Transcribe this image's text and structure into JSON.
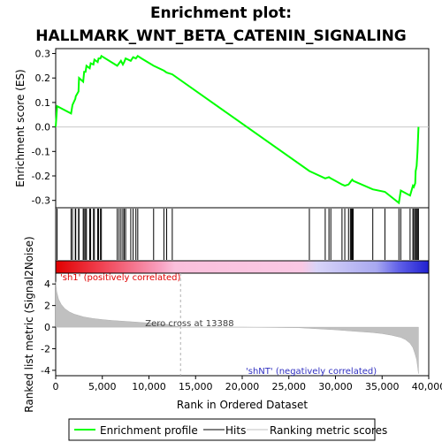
{
  "chart_data": {
    "type": "line",
    "title_line1": "Enrichment plot:",
    "title_line2": "HALLMARK_WNT_BETA_CATENIN_SIGNALING",
    "top_panel": {
      "ylabel": "Enrichment score (ES)",
      "ylim": [
        -0.33,
        0.32
      ],
      "yticks": [
        0.3,
        0.2,
        0.1,
        0.0,
        -0.1,
        -0.2,
        -0.3
      ],
      "ytick_labels": [
        "0.3",
        "0.2",
        "0.1",
        "0.0",
        "-0.1",
        "-0.2",
        "-0.3"
      ],
      "series": [
        {
          "name": "Enrichment profile",
          "color": "#00ff00",
          "x": [
            0,
            150,
            1650,
            1800,
            2100,
            2150,
            2450,
            2500,
            2950,
            3050,
            3200,
            3300,
            3650,
            3750,
            4050,
            4150,
            4500,
            4600,
            4800,
            4900,
            6600,
            6800,
            7000,
            7200,
            7350,
            7500,
            8050,
            8300,
            8600,
            8800,
            9200,
            10500,
            11600,
            11900,
            12500,
            27200,
            28900,
            29300,
            29500,
            30700,
            31000,
            31400,
            31600,
            31700,
            31800,
            31900,
            34000,
            35300,
            36800,
            37000,
            38000,
            38300,
            38400,
            38550,
            38600,
            38700,
            38800,
            38900
          ],
          "y": [
            0.0,
            0.085,
            0.055,
            0.09,
            0.115,
            0.125,
            0.145,
            0.2,
            0.185,
            0.225,
            0.225,
            0.25,
            0.24,
            0.26,
            0.255,
            0.275,
            0.265,
            0.28,
            0.28,
            0.29,
            0.25,
            0.26,
            0.27,
            0.255,
            0.265,
            0.28,
            0.27,
            0.285,
            0.28,
            0.29,
            0.28,
            0.25,
            0.23,
            0.222,
            0.215,
            -0.18,
            -0.21,
            -0.205,
            -0.21,
            -0.235,
            -0.24,
            -0.235,
            -0.225,
            -0.22,
            -0.215,
            -0.22,
            -0.255,
            -0.265,
            -0.31,
            -0.26,
            -0.28,
            -0.24,
            -0.245,
            -0.23,
            -0.18,
            -0.16,
            -0.1,
            0.0
          ]
        }
      ]
    },
    "hits_panel": {
      "series_name": "Hits",
      "x": [
        150,
        1650,
        1800,
        2100,
        2150,
        2450,
        2500,
        2950,
        3050,
        3200,
        3300,
        3650,
        3750,
        4050,
        4150,
        4500,
        4600,
        4800,
        4900,
        6600,
        6800,
        7000,
        7200,
        7350,
        7500,
        8050,
        8300,
        8600,
        8800,
        10500,
        11600,
        11900,
        12500,
        27200,
        28900,
        29300,
        29500,
        30700,
        31000,
        31400,
        31600,
        31700,
        31800,
        31900,
        34000,
        35300,
        36800,
        37000,
        38000,
        38300,
        38400,
        38550,
        38600,
        38700,
        38800,
        38900
      ]
    },
    "bottom_panel": {
      "series_name": "Ranking metric scores",
      "ylabel": "Ranked list metric (Signal2Noise)",
      "xlabel": "Rank in Ordered Dataset",
      "xlim": [
        0,
        40000
      ],
      "ylim": [
        -4.5,
        5.0
      ],
      "yticks": [
        4,
        2,
        0,
        -2,
        -4
      ],
      "ytick_labels": [
        "4",
        "2",
        "0",
        "-2",
        "-4"
      ],
      "xticks": [
        0,
        5000,
        10000,
        15000,
        20000,
        25000,
        30000,
        35000,
        40000
      ],
      "xtick_labels": [
        "0",
        "5,000",
        "10,000",
        "15,000",
        "20,000",
        "25,000",
        "30,000",
        "35,000",
        "40,000"
      ],
      "metric_x": [
        0,
        100,
        300,
        600,
        1000,
        1500,
        2000,
        3000,
        4000,
        5000,
        6000,
        8000,
        10000,
        12000,
        13388,
        14000,
        20000,
        26000,
        28000,
        30000,
        32000,
        34000,
        35000,
        36000,
        37000,
        37500,
        38000,
        38300,
        38500,
        38700,
        38800,
        38900
      ],
      "metric_y": [
        4.2,
        3.3,
        2.6,
        2.1,
        1.7,
        1.4,
        1.2,
        0.95,
        0.8,
        0.7,
        0.62,
        0.5,
        0.38,
        0.25,
        0.0,
        0.0,
        0.0,
        -0.05,
        -0.15,
        -0.25,
        -0.38,
        -0.5,
        -0.6,
        -0.75,
        -0.95,
        -1.15,
        -1.5,
        -1.9,
        -2.4,
        -3.0,
        -3.6,
        -4.3
      ],
      "metric_color": "#c0c0c0",
      "zero_cross_label": "Zero cross at 13388",
      "zero_cross_x": 13388,
      "pos_label": "'sh1' (positively correlated)",
      "neg_label": "'shNT' (negatively correlated)"
    },
    "legend": {
      "items": [
        {
          "label": "Enrichment profile",
          "color": "#00ff00"
        },
        {
          "label": "Hits",
          "color": "#000000"
        },
        {
          "label": "Ranking metric scores",
          "color": "#c0c0c0"
        }
      ]
    }
  }
}
